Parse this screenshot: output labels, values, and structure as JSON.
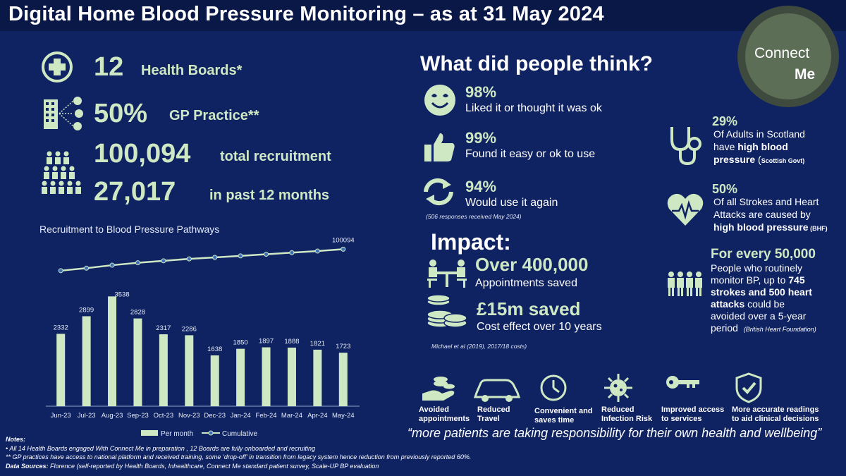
{
  "header": {
    "title": "Digital Home Blood Pressure Monitoring – as at 31 May 2024"
  },
  "logo": {
    "line1": "Connect",
    "line2": "Me"
  },
  "stats": {
    "health_boards_num": "12",
    "health_boards_label": "Health Boards*",
    "gp_num": "50%",
    "gp_label": "GP Practice**",
    "total_num": "100,094",
    "total_label": "total recruitment",
    "past_num": "27,017",
    "past_label": "in past 12 months"
  },
  "chart_data": {
    "type": "bar",
    "title": "Recruitment to Blood Pressure Pathways",
    "categories": [
      "Jun-23",
      "Jul-23",
      "Aug-23",
      "Sep-23",
      "Oct-23",
      "Nov-23",
      "Dec-23",
      "Jan-24",
      "Feb-24",
      "Mar-24",
      "Apr-24",
      "May-24"
    ],
    "series": [
      {
        "name": "Per month",
        "kind": "bar",
        "values": [
          2332,
          2899,
          3538,
          2828,
          2317,
          2286,
          1638,
          1850,
          1897,
          1888,
          1821,
          1723
        ]
      },
      {
        "name": "Cumulative",
        "kind": "line",
        "values": [
          75000,
          77900,
          81400,
          84200,
          86500,
          88800,
          90500,
          92300,
          94200,
          96100,
          97900,
          100094
        ]
      }
    ],
    "end_label": "100094",
    "ylim": [
      0,
      4000
    ],
    "legend_position": "bottom",
    "colors": {
      "bar": "#cfe8c4",
      "line": "#cfe8c4",
      "marker": "#3b6fb6"
    }
  },
  "think": {
    "heading": "What did people think?",
    "items": [
      {
        "pct": "98%",
        "text": "Liked it or thought it was ok",
        "icon": "smiley-icon"
      },
      {
        "pct": "99%",
        "text": "Found it easy or ok to use",
        "icon": "thumbs-up-icon"
      },
      {
        "pct": "94%",
        "text": "Would use it again",
        "icon": "refresh-icon"
      }
    ],
    "note": "(506 responses received May 2024)"
  },
  "impact": {
    "heading": "Impact:",
    "appointments_num": "Over 400,000",
    "appointments_text": "Appointments saved",
    "saved_num": "£15m saved",
    "saved_text": "Cost effect over 10 years",
    "source": "Michael et al (2019), 2017/18 costs)"
  },
  "facts": {
    "f1_pct": "29%",
    "f1_l1": "Of Adults in Scotland",
    "f1_l2a": "have ",
    "f1_l2b": "high blood",
    "f1_l3a": "pressure",
    "f1_l3b": " (",
    "f1_l3c": "Scottish Govt)",
    "f2_pct": "50%",
    "f2_l1": "Of all Strokes and Heart",
    "f2_l2": "Attacks are caused by",
    "f2_l3": "high blood pressure",
    "f2_l3b": " (BHF)",
    "f3_head": "For every 50,000",
    "f3_l1": "People who routinely",
    "f3_l2a": "monitor BP, up to ",
    "f3_l2b": "745",
    "f3_l3": "strokes and 500 heart",
    "f3_l4": "attacks",
    "f3_l4b": " could be",
    "f3_l5": "avoided over a 5-year",
    "f3_l6": "period",
    "f3_src": "(British Heart Foundation)"
  },
  "benefits": [
    {
      "l1": "Avoided",
      "l2": "appointments",
      "icon": "hand-coins-icon"
    },
    {
      "l1": "Reduced",
      "l2": "Travel",
      "icon": "car-icon"
    },
    {
      "l1": "Convenient and",
      "l2": "saves time",
      "icon": "clock-icon"
    },
    {
      "l1": "Reduced",
      "l2": "Infection Risk",
      "icon": "virus-icon"
    },
    {
      "l1": "Improved access",
      "l2": "to services",
      "icon": "key-icon"
    },
    {
      "l1": "More accurate readings",
      "l2": "to aid clinical decisions",
      "icon": "shield-check-icon"
    }
  ],
  "quote": "“more patients are taking responsibility for their own health and wellbeing”",
  "notes": {
    "heading": "Notes:",
    "n1": "•     All 14 Health Boards engaged With Connect Me in preparation , 12 Boards are fully onboarded and recruiting",
    "n2": "** GP practices have access to national platform and received training, some ‘drop-off’ in transition from legacy system hence reduction from previously reported 60%.",
    "sources_label": "Data Sources:",
    "sources": " Florence (self-reported by Health Boards, Inhealthcare, Connect Me standard patient survey, Scale-UP BP evaluation"
  },
  "colors": {
    "background": "#0f2262",
    "accent": "#cfe8c4"
  }
}
